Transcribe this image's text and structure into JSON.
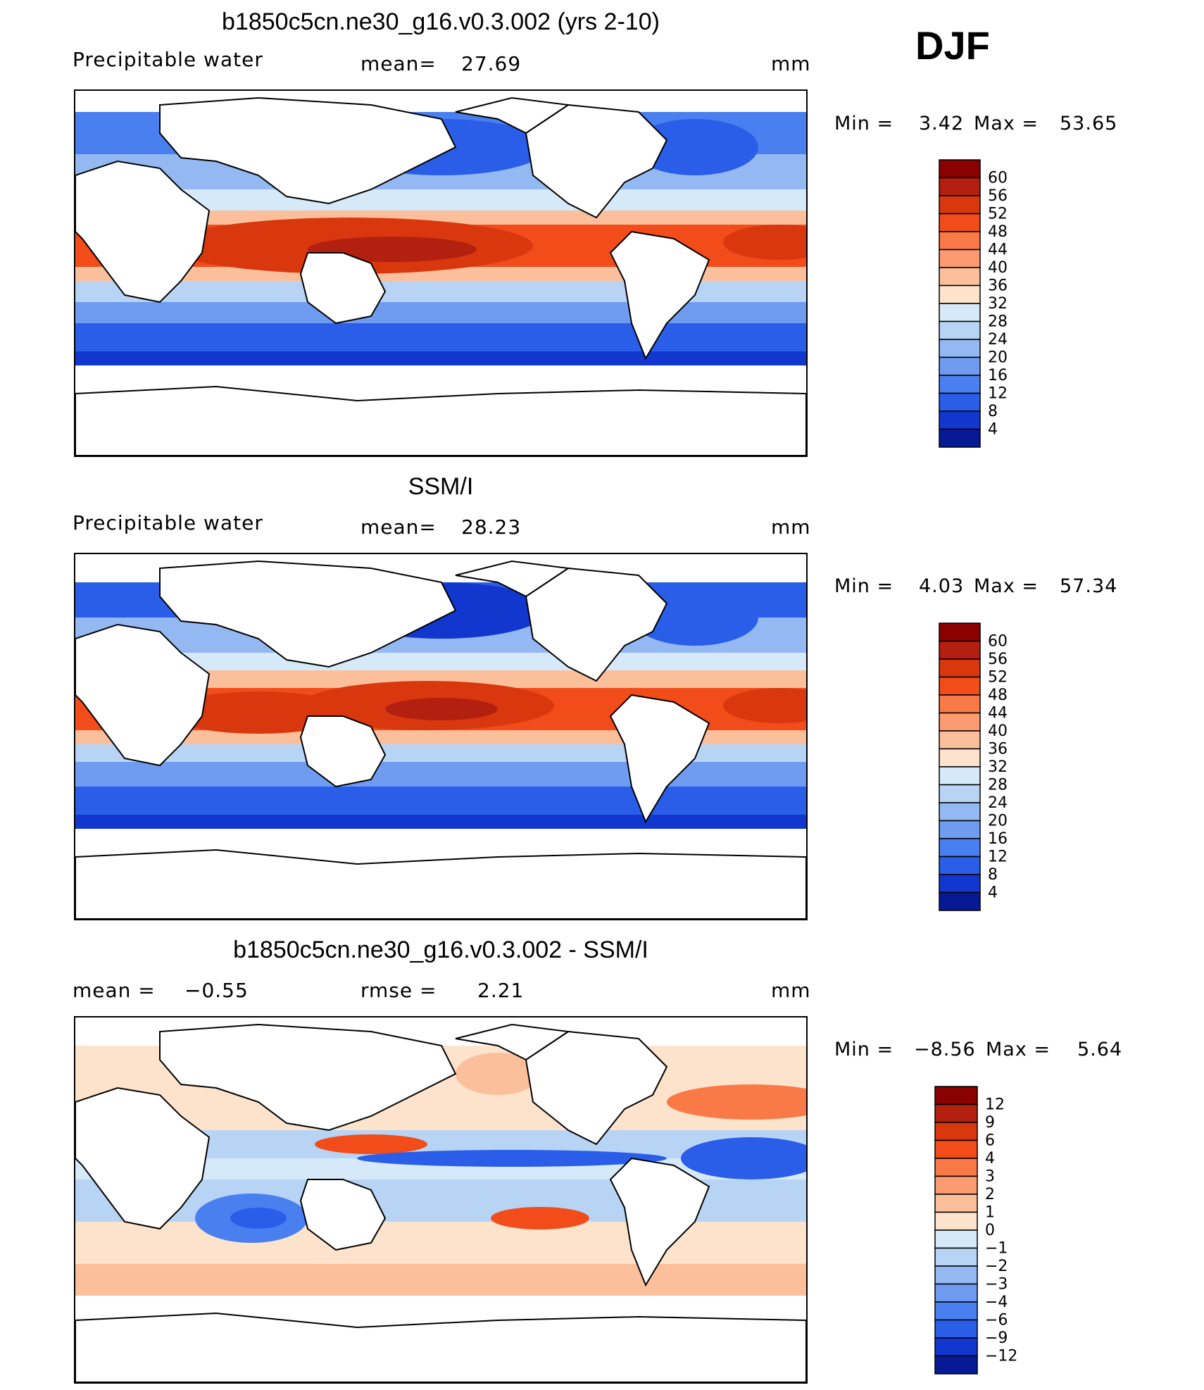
{
  "season": "DJF",
  "units": "mm",
  "panels": [
    {
      "title": "b1850c5cn.ne30_g16.v0.3.002 (yrs 2-10)",
      "variable": "Precipitable water",
      "stat1_label": "mean=",
      "stat1_value": "27.69",
      "stat2_label": "",
      "stat2_value": "",
      "units": "mm",
      "min_label": "Min =",
      "min_value": "3.42",
      "max_label": "Max =",
      "max_value": "53.65"
    },
    {
      "title": "SSM/I",
      "variable": "Precipitable water",
      "stat1_label": "mean=",
      "stat1_value": "28.23",
      "stat2_label": "",
      "stat2_value": "",
      "units": "mm",
      "min_label": "Min =",
      "min_value": "4.03",
      "max_label": "Max =",
      "max_value": "57.34"
    },
    {
      "title": "b1850c5cn.ne30_g16.v0.3.002 - SSM/I",
      "variable": "",
      "stat1_label": "mean =",
      "stat1_value": "−0.55",
      "stat2_label": "rmse =",
      "stat2_value": "2.21",
      "units": "mm",
      "min_label": "Min =",
      "min_value": "−8.56",
      "max_label": "Max =",
      "max_value": "5.64"
    }
  ],
  "chart_data": [
    {
      "type": "heatmap",
      "title": "b1850c5cn.ne30_g16.v0.3.002 (yrs 2-10)",
      "field": "Precipitable water",
      "units": "mm",
      "mean": 27.69,
      "min": 3.42,
      "max": 53.65,
      "colorbar_levels": [
        "60",
        "56",
        "52",
        "48",
        "44",
        "40",
        "36",
        "32",
        "28",
        "24",
        "20",
        "16",
        "12",
        "8",
        "4"
      ],
      "colorbar_colors": [
        "#8b0000",
        "#b3200f",
        "#d9380f",
        "#f24c1a",
        "#fa7a47",
        "#fc9b70",
        "#fcbf9c",
        "#fde2cc",
        "#d6e9f8",
        "#b8d4f5",
        "#94b8f2",
        "#6f9cf0",
        "#4a7ff0",
        "#2a5ee8",
        "#1237cf",
        "#061a96"
      ]
    },
    {
      "type": "heatmap",
      "title": "SSM/I",
      "field": "Precipitable water",
      "units": "mm",
      "mean": 28.23,
      "min": 4.03,
      "max": 57.34,
      "colorbar_levels": [
        "60",
        "56",
        "52",
        "48",
        "44",
        "40",
        "36",
        "32",
        "28",
        "24",
        "20",
        "16",
        "12",
        "8",
        "4"
      ],
      "colorbar_colors": [
        "#8b0000",
        "#b3200f",
        "#d9380f",
        "#f24c1a",
        "#fa7a47",
        "#fc9b70",
        "#fcbf9c",
        "#fde2cc",
        "#d6e9f8",
        "#b8d4f5",
        "#94b8f2",
        "#6f9cf0",
        "#4a7ff0",
        "#2a5ee8",
        "#1237cf",
        "#061a96"
      ]
    },
    {
      "type": "heatmap",
      "title": "b1850c5cn.ne30_g16.v0.3.002 - SSM/I",
      "units": "mm",
      "mean": -0.55,
      "rmse": 2.21,
      "min": -8.56,
      "max": 5.64,
      "colorbar_levels": [
        "12",
        "9",
        "6",
        "4",
        "3",
        "2",
        "1",
        "0",
        "−1",
        "−2",
        "−3",
        "−4",
        "−6",
        "−9",
        "−12"
      ],
      "colorbar_colors": [
        "#8b0000",
        "#b3200f",
        "#d9380f",
        "#f24c1a",
        "#fa7a47",
        "#fc9b70",
        "#fcbf9c",
        "#fde2cc",
        "#d6e9f8",
        "#b8d4f5",
        "#94b8f2",
        "#6f9cf0",
        "#4a7ff0",
        "#2a5ee8",
        "#1237cf",
        "#061a96"
      ]
    }
  ]
}
